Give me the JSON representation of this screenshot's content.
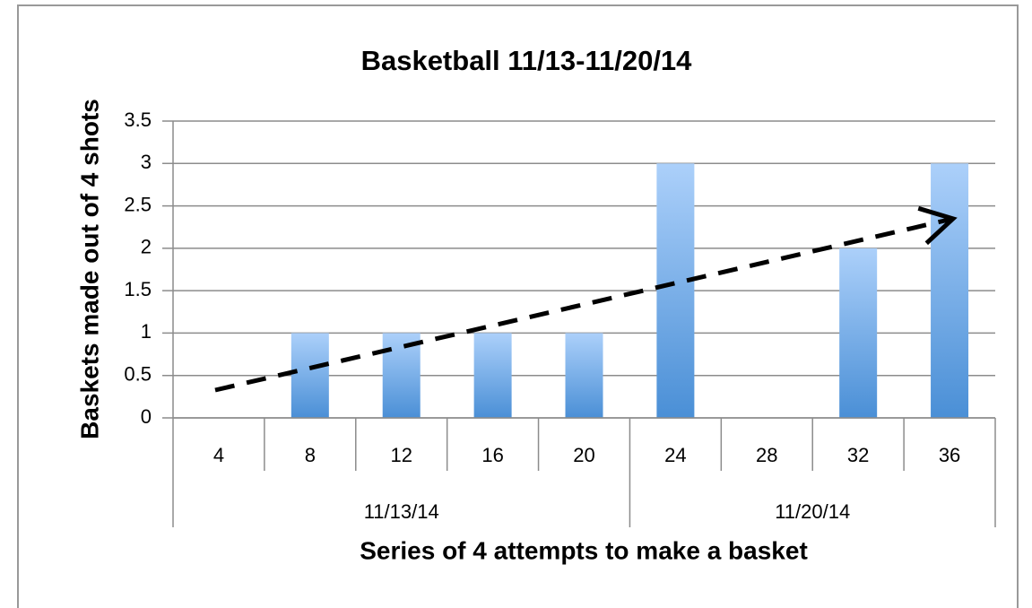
{
  "chart_data": {
    "type": "bar",
    "title": "Basketball 11/13-11/20/14",
    "x_label": "Series of 4 attempts to make a basket",
    "y_label": "Baskets made out of 4 shots",
    "groups": [
      {
        "name": "11/13/14",
        "categories": [
          "4",
          "8",
          "12",
          "16",
          "20"
        ],
        "values": [
          0,
          1,
          1,
          1,
          1
        ]
      },
      {
        "name": "11/20/14",
        "categories": [
          "24",
          "28",
          "32",
          "36"
        ],
        "values": [
          3,
          0,
          2,
          3
        ]
      }
    ],
    "color": "#5b9bd5",
    "ylim": [
      0,
      3.5
    ],
    "yticks": [
      0,
      0.5,
      1,
      1.5,
      2,
      2.5,
      3,
      3.5
    ],
    "grid": true
  }
}
